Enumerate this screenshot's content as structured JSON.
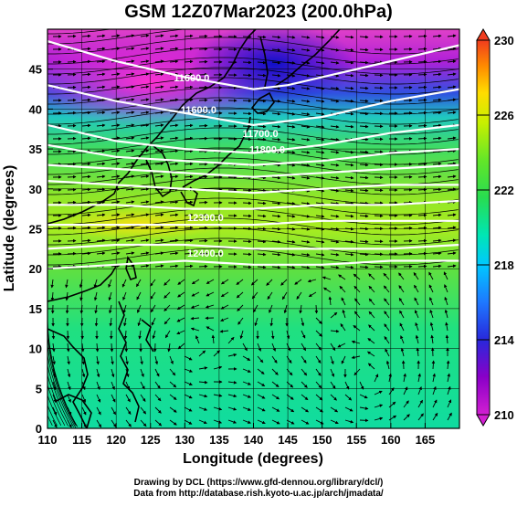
{
  "title": "GSM 12Z07Mar2023 (200.0hPa)",
  "x_axis": {
    "label": "Longitude (degrees)",
    "range": [
      110,
      170
    ],
    "ticks": [
      "110",
      "115",
      "120",
      "125",
      "130",
      "135",
      "140",
      "145",
      "150",
      "155",
      "160",
      "165"
    ],
    "tick_values": [
      110,
      115,
      120,
      125,
      130,
      135,
      140,
      145,
      150,
      155,
      160,
      165
    ]
  },
  "y_axis": {
    "label": "Latitude (degrees)",
    "range": [
      0,
      50
    ],
    "ticks": [
      "0",
      "5",
      "10",
      "15",
      "20",
      "25",
      "30",
      "35",
      "40",
      "45"
    ],
    "tick_values": [
      0,
      5,
      10,
      15,
      20,
      25,
      30,
      35,
      40,
      45
    ]
  },
  "colorbar": {
    "range": [
      210,
      230
    ],
    "labels": [
      "210",
      "214",
      "218",
      "222",
      "226",
      "230"
    ],
    "label_values": [
      210,
      214,
      218,
      222,
      226,
      230
    ],
    "colors": [
      "#d21fd2",
      "#8a00c8",
      "#2828dc",
      "#1e78ff",
      "#00c8ff",
      "#00e6b4",
      "#28dc50",
      "#64e628",
      "#c8f000",
      "#ffdc00",
      "#ff8c00",
      "#f03c1e"
    ]
  },
  "contours": {
    "color": "#ffffff",
    "labels": [
      {
        "text": "11600.0",
        "lon": 131,
        "lat": 43.5
      },
      {
        "text": "11600.0",
        "lon": 132,
        "lat": 39.5
      },
      {
        "text": "11700.0",
        "lon": 141,
        "lat": 36.5
      },
      {
        "text": "11800.0",
        "lon": 142,
        "lat": 34.5
      },
      {
        "text": "12300.0",
        "lon": 133,
        "lat": 26
      },
      {
        "text": "12400.0",
        "lon": 133,
        "lat": 21.5
      }
    ],
    "lines": [
      [
        [
          110,
          48.5
        ],
        [
          120,
          46
        ],
        [
          130,
          44
        ],
        [
          140,
          42.5
        ],
        [
          145,
          43
        ],
        [
          150,
          44
        ],
        [
          160,
          46
        ],
        [
          170,
          48
        ]
      ],
      [
        [
          110,
          43
        ],
        [
          120,
          41
        ],
        [
          130,
          39.5
        ],
        [
          140,
          38
        ],
        [
          150,
          39
        ],
        [
          160,
          41
        ],
        [
          170,
          42.5
        ]
      ],
      [
        [
          110,
          38
        ],
        [
          120,
          36
        ],
        [
          130,
          35
        ],
        [
          140,
          34.5
        ],
        [
          150,
          35.5
        ],
        [
          160,
          37
        ],
        [
          170,
          38
        ]
      ],
      [
        [
          110,
          35.5
        ],
        [
          120,
          34
        ],
        [
          130,
          33.5
        ],
        [
          140,
          33
        ],
        [
          150,
          33.5
        ],
        [
          160,
          34.5
        ],
        [
          170,
          35
        ]
      ],
      [
        [
          110,
          33
        ],
        [
          120,
          32.5
        ],
        [
          130,
          32
        ],
        [
          140,
          31.5
        ],
        [
          150,
          32
        ],
        [
          160,
          32.5
        ],
        [
          170,
          33
        ]
      ],
      [
        [
          110,
          31
        ],
        [
          120,
          30.5
        ],
        [
          130,
          30
        ],
        [
          140,
          29.5
        ],
        [
          150,
          30
        ],
        [
          160,
          30.5
        ],
        [
          170,
          30.5
        ]
      ],
      [
        [
          110,
          28
        ],
        [
          120,
          28
        ],
        [
          130,
          27.5
        ],
        [
          140,
          27.5
        ],
        [
          150,
          28
        ],
        [
          160,
          28
        ],
        [
          170,
          28.5
        ]
      ],
      [
        [
          110,
          25.5
        ],
        [
          120,
          25.5
        ],
        [
          130,
          25.5
        ],
        [
          140,
          25.5
        ],
        [
          150,
          26
        ],
        [
          160,
          26
        ],
        [
          170,
          26
        ]
      ],
      [
        [
          110,
          22.5
        ],
        [
          120,
          23
        ],
        [
          130,
          23
        ],
        [
          140,
          22.5
        ],
        [
          150,
          22.5
        ],
        [
          160,
          22.5
        ],
        [
          170,
          23
        ]
      ],
      [
        [
          110,
          20
        ],
        [
          120,
          20.5
        ],
        [
          130,
          21
        ],
        [
          140,
          20.5
        ],
        [
          150,
          20.5
        ],
        [
          160,
          21
        ],
        [
          170,
          21
        ]
      ]
    ]
  },
  "footer": {
    "line1": "Drawing by DCL (https://www.gfd-dennou.org/library/dcl/)",
    "line2": "Data from http://database.rish.kyoto-u.ac.jp/arch/jmadata/"
  }
}
